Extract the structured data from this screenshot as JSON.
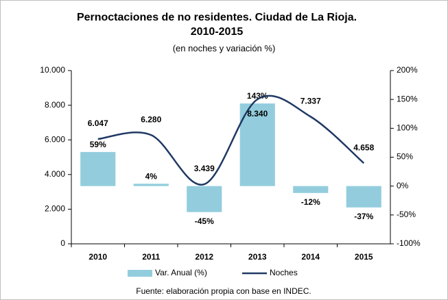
{
  "chart_data": {
    "type": "bar",
    "title": "Pernoctaciones de no residentes. Ciudad de La Rioja. 2010-2015",
    "subtitle": "(en noches y variación %)",
    "source": "Fuente: elaboración propia con base en INDEC.",
    "categories": [
      "2010",
      "2011",
      "2012",
      "2013",
      "2014",
      "2015"
    ],
    "series": [
      {
        "name": "Var. Anual (%)",
        "type": "bar",
        "axis": "y2",
        "color": "#93cddd",
        "label_color": "#00b0f0",
        "values": [
          59,
          4,
          -45,
          143,
          -12,
          -37
        ],
        "value_labels": [
          "59%",
          "4%",
          "-45%",
          "143%",
          "-12%",
          "-37%"
        ]
      },
      {
        "name": "Noches",
        "type": "line",
        "color": "#1f3864",
        "label_color": "#3a4658",
        "values": [
          6047,
          6280,
          3439,
          8340,
          7337,
          4658
        ],
        "value_labels": [
          "6.047",
          "6.280",
          "3.439",
          "8.340",
          "7.337",
          "4.658"
        ]
      }
    ],
    "ylim": [
      0,
      10000
    ],
    "yticks": [
      {
        "value": 0,
        "label": "0"
      },
      {
        "value": 2000,
        "label": "2.000"
      },
      {
        "value": 4000,
        "label": "4.000"
      },
      {
        "value": 6000,
        "label": "6.000"
      },
      {
        "value": 8000,
        "label": "8.000"
      },
      {
        "value": 10000,
        "label": "10.000"
      }
    ],
    "y2lim": [
      -100,
      200
    ],
    "y2ticks": [
      {
        "value": -100,
        "label": "-100%"
      },
      {
        "value": -50,
        "label": "-50%"
      },
      {
        "value": 0,
        "label": "0%"
      },
      {
        "value": 50,
        "label": "50%"
      },
      {
        "value": 100,
        "label": "100%"
      },
      {
        "value": 150,
        "label": "150%"
      },
      {
        "value": 200,
        "label": "200%"
      }
    ],
    "legend": "bottom"
  }
}
